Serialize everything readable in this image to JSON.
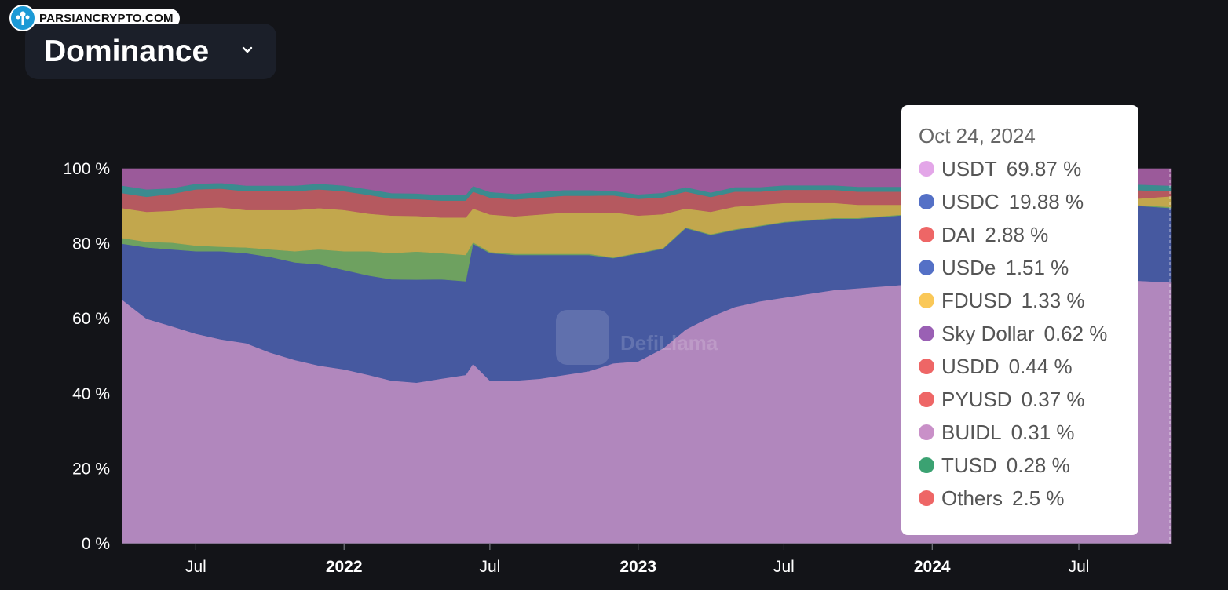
{
  "brand": {
    "text": "PARSIANCRYPTO.COM"
  },
  "selector": {
    "label": "Dominance",
    "icon": "chevron-down-icon"
  },
  "watermark": {
    "text": "DefiLlama"
  },
  "tooltip": {
    "date": "Oct 24, 2024",
    "rows": [
      {
        "name": "USDT",
        "value": "69.87 %",
        "color": "#e3a6e8"
      },
      {
        "name": "USDC",
        "value": "19.88 %",
        "color": "#5470c6"
      },
      {
        "name": "DAI",
        "value": "2.88 %",
        "color": "#ee6666"
      },
      {
        "name": "USDe",
        "value": "1.51 %",
        "color": "#5470c6"
      },
      {
        "name": "FDUSD",
        "value": "1.33 %",
        "color": "#fac858"
      },
      {
        "name": "Sky Dollar",
        "value": "0.62 %",
        "color": "#9a60b4"
      },
      {
        "name": "USDD",
        "value": "0.44 %",
        "color": "#ee6666"
      },
      {
        "name": "PYUSD",
        "value": "0.37 %",
        "color": "#ee6666"
      },
      {
        "name": "BUIDL",
        "value": "0.31 %",
        "color": "#c990c8"
      },
      {
        "name": "TUSD",
        "value": "0.28 %",
        "color": "#3ba272"
      },
      {
        "name": "Others",
        "value": "2.5 %",
        "color": "#ee6666"
      }
    ]
  },
  "chart_data": {
    "type": "area",
    "stacked": true,
    "normalized": true,
    "title": "Dominance",
    "ylim": [
      0,
      100
    ],
    "yticks": [
      "0 %",
      "20 %",
      "40 %",
      "60 %",
      "80 %",
      "100 %"
    ],
    "xticks": [
      {
        "date": "2021-07-01",
        "label": "Jul",
        "bold": false
      },
      {
        "date": "2022-01-01",
        "label": "2022",
        "bold": true
      },
      {
        "date": "2022-07-01",
        "label": "Jul",
        "bold": false
      },
      {
        "date": "2023-01-01",
        "label": "2023",
        "bold": true
      },
      {
        "date": "2023-07-01",
        "label": "Jul",
        "bold": false
      },
      {
        "date": "2024-01-01",
        "label": "2024",
        "bold": true
      },
      {
        "date": "2024-07-01",
        "label": "Jul",
        "bold": false
      }
    ],
    "x": [
      "2021-04-01",
      "2021-05-01",
      "2021-06-01",
      "2021-07-01",
      "2021-08-01",
      "2021-09-01",
      "2021-10-01",
      "2021-11-01",
      "2021-12-01",
      "2022-01-01",
      "2022-02-01",
      "2022-03-01",
      "2022-04-01",
      "2022-05-01",
      "2022-06-01",
      "2022-06-10",
      "2022-07-01",
      "2022-08-01",
      "2022-09-01",
      "2022-10-01",
      "2022-11-01",
      "2022-12-01",
      "2023-01-01",
      "2023-02-01",
      "2023-03-01",
      "2023-04-01",
      "2023-05-01",
      "2023-06-01",
      "2023-07-01",
      "2023-08-01",
      "2023-09-01",
      "2023-10-01",
      "2023-11-01",
      "2023-12-01",
      "2024-01-01",
      "2024-02-01",
      "2024-03-01",
      "2024-04-01",
      "2024-05-01",
      "2024-06-01",
      "2024-07-01",
      "2024-08-01",
      "2024-09-01",
      "2024-10-24"
    ],
    "series": [
      {
        "name": "USDT",
        "color": "#b187bd",
        "values": [
          65,
          60,
          58,
          56,
          54.5,
          53.5,
          51,
          49,
          47.5,
          46.5,
          45,
          43.5,
          43,
          44,
          45,
          48,
          43.5,
          43.5,
          44,
          45,
          46,
          48,
          49,
          52,
          57,
          61,
          63,
          64.5,
          65.5,
          66.5,
          67.5,
          68,
          68.5,
          69,
          69.5,
          69.8,
          69.8,
          69.9,
          69.9,
          69.9,
          69.9,
          69.9,
          69.9,
          69.87
        ]
      },
      {
        "name": "USDC",
        "color": "#4659a0",
        "values": [
          15,
          19,
          20.5,
          22,
          23.5,
          24,
          25.5,
          26,
          27,
          26.5,
          26.5,
          27,
          27.5,
          26.5,
          25,
          32,
          34,
          33.5,
          33,
          32,
          31,
          28,
          29,
          26.5,
          27,
          22,
          20.5,
          20,
          20,
          19.5,
          19,
          18.5,
          18.5,
          18.5,
          19,
          19.4,
          19.5,
          19.6,
          19.7,
          19.8,
          19.8,
          19.8,
          19.9,
          19.88
        ]
      },
      {
        "name": "TUSD",
        "color": "#6ea160",
        "values": [
          1.5,
          1.5,
          1.8,
          1.5,
          1.2,
          1.5,
          2,
          3,
          4,
          5,
          6.5,
          7,
          7.5,
          7,
          7,
          0.4,
          0.3,
          0.3,
          0.3,
          0.3,
          0.3,
          0.2,
          0.2,
          0.2,
          0.2,
          0.2,
          0.2,
          0.2,
          0.2,
          0.2,
          0.2,
          0.2,
          0.2,
          0.2,
          0.2,
          0.2,
          0.2,
          0.2,
          0.2,
          0.2,
          0.2,
          0.2,
          0.2,
          0.28
        ]
      },
      {
        "name": "DAI",
        "color": "#c2a74d",
        "values": [
          8,
          8,
          8.5,
          10,
          10.5,
          10,
          10.5,
          11,
          11,
          11,
          10,
          10,
          9.5,
          9.5,
          10,
          9,
          10,
          10,
          10.5,
          11,
          11,
          12,
          10,
          9,
          5,
          6,
          6,
          5.5,
          5,
          4.5,
          4,
          3.5,
          3,
          2.5,
          2.2,
          2,
          1.8,
          1.6,
          1.5,
          1.4,
          1.4,
          1.4,
          1.4,
          2.88
        ]
      },
      {
        "name": "FDUSD",
        "color": "#b5595f",
        "values": [
          4,
          4,
          4.5,
          5,
          5,
          5,
          5,
          5,
          5,
          5,
          5,
          4.5,
          4.5,
          4.5,
          4.5,
          4.5,
          4.5,
          4.5,
          4.5,
          4.5,
          4.5,
          4.5,
          4.5,
          4.5,
          4.5,
          4,
          4,
          3.5,
          3.5,
          3.5,
          3.5,
          3.5,
          3.5,
          3.5,
          3,
          3,
          3,
          3,
          3,
          2.9,
          2.8,
          2.6,
          2.5,
          1.33
        ]
      },
      {
        "name": "USDe",
        "color": "#3b8b8f",
        "values": [
          2,
          2,
          1.5,
          1.5,
          1.5,
          1.5,
          1.5,
          1.5,
          1.5,
          1.5,
          1.5,
          1.5,
          1.5,
          1.5,
          1.5,
          1.5,
          1.5,
          1.5,
          1.5,
          1.5,
          1.5,
          1.2,
          1.2,
          1.2,
          1.2,
          1.2,
          1.2,
          1.2,
          1.2,
          1.2,
          1.2,
          1.3,
          1.3,
          1.3,
          1.3,
          1.3,
          1.4,
          1.4,
          1.4,
          1.5,
          1.5,
          1.5,
          1.5,
          1.51
        ]
      },
      {
        "name": "Others",
        "color": "#9b5a9a",
        "values": [
          4.5,
          5.5,
          5.2,
          4,
          3.8,
          4.5,
          4.5,
          4.5,
          4,
          4.5,
          5.5,
          6.5,
          6.6,
          7,
          7,
          4.6,
          6.2,
          6.7,
          6.2,
          5.7,
          5.7,
          5.9,
          6.9,
          6.4,
          4.9,
          6.4,
          4.9,
          4.9,
          4.4,
          4.4,
          4.4,
          4.8,
          4.8,
          4.8,
          4.8,
          4.1,
          4.1,
          4.1,
          4.1,
          4.1,
          4.2,
          4.3,
          4.1,
          4.53
        ]
      }
    ]
  }
}
